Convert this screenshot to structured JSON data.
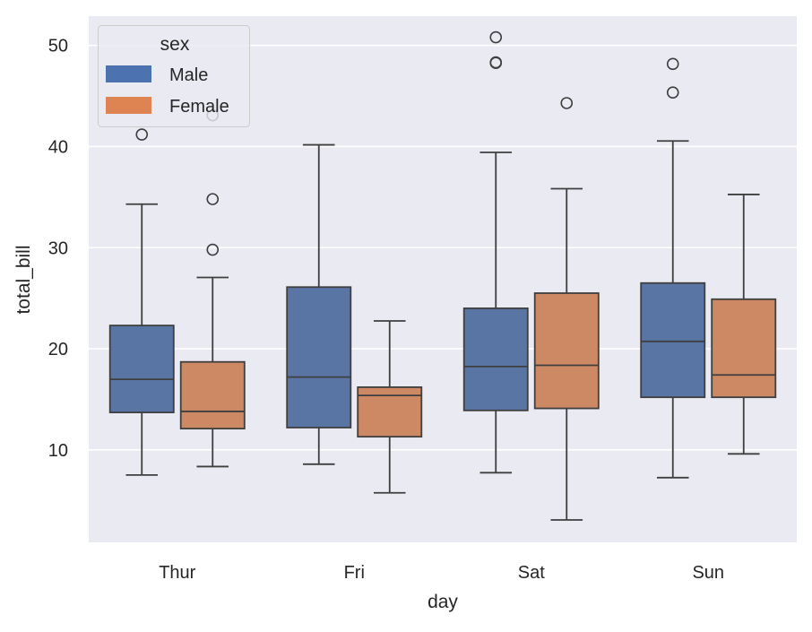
{
  "chart_data": {
    "type": "box",
    "title": "",
    "xlabel": "day",
    "ylabel": "total_bill",
    "categories": [
      "Thur",
      "Fri",
      "Sat",
      "Sun"
    ],
    "ylim": [
      0.85,
      52.9
    ],
    "yticks": [
      10,
      20,
      30,
      40,
      50
    ],
    "grid": true,
    "legend": {
      "title": "sex",
      "placement": "top-left",
      "entries": [
        "Male",
        "Female"
      ]
    },
    "series": [
      {
        "name": "Male",
        "color": "#4c72b0",
        "box_color": "#5975a4",
        "boxes": [
          {
            "category": "Thur",
            "whisker_low": 7.51,
            "q1": 13.7,
            "median": 16.98,
            "q3": 22.3,
            "whisker_high": 34.3,
            "outliers": [
              41.19
            ]
          },
          {
            "category": "Fri",
            "whisker_low": 8.58,
            "q1": 12.2,
            "median": 17.2,
            "q3": 26.1,
            "whisker_high": 40.17,
            "outliers": []
          },
          {
            "category": "Sat",
            "whisker_low": 7.74,
            "q1": 13.9,
            "median": 18.24,
            "q3": 24.0,
            "whisker_high": 39.42,
            "outliers": [
              48.27,
              48.33,
              50.81
            ]
          },
          {
            "category": "Sun",
            "whisker_low": 7.25,
            "q1": 15.2,
            "median": 20.73,
            "q3": 26.5,
            "whisker_high": 40.55,
            "outliers": [
              45.35,
              48.17
            ]
          }
        ]
      },
      {
        "name": "Female",
        "color": "#dd8452",
        "box_color": "#cc8963",
        "boxes": [
          {
            "category": "Thur",
            "whisker_low": 8.35,
            "q1": 12.1,
            "median": 13.8,
            "q3": 18.7,
            "whisker_high": 27.05,
            "outliers": [
              29.8,
              34.8,
              43.1
            ]
          },
          {
            "category": "Fri",
            "whisker_low": 5.75,
            "q1": 11.3,
            "median": 15.38,
            "q3": 16.2,
            "whisker_high": 22.75,
            "outliers": []
          },
          {
            "category": "Sat",
            "whisker_low": 3.07,
            "q1": 14.1,
            "median": 18.36,
            "q3": 25.5,
            "whisker_high": 35.83,
            "outliers": [
              44.3
            ]
          },
          {
            "category": "Sun",
            "whisker_low": 9.6,
            "q1": 15.2,
            "median": 17.41,
            "q3": 24.9,
            "whisker_high": 35.26,
            "outliers": []
          }
        ]
      }
    ]
  }
}
